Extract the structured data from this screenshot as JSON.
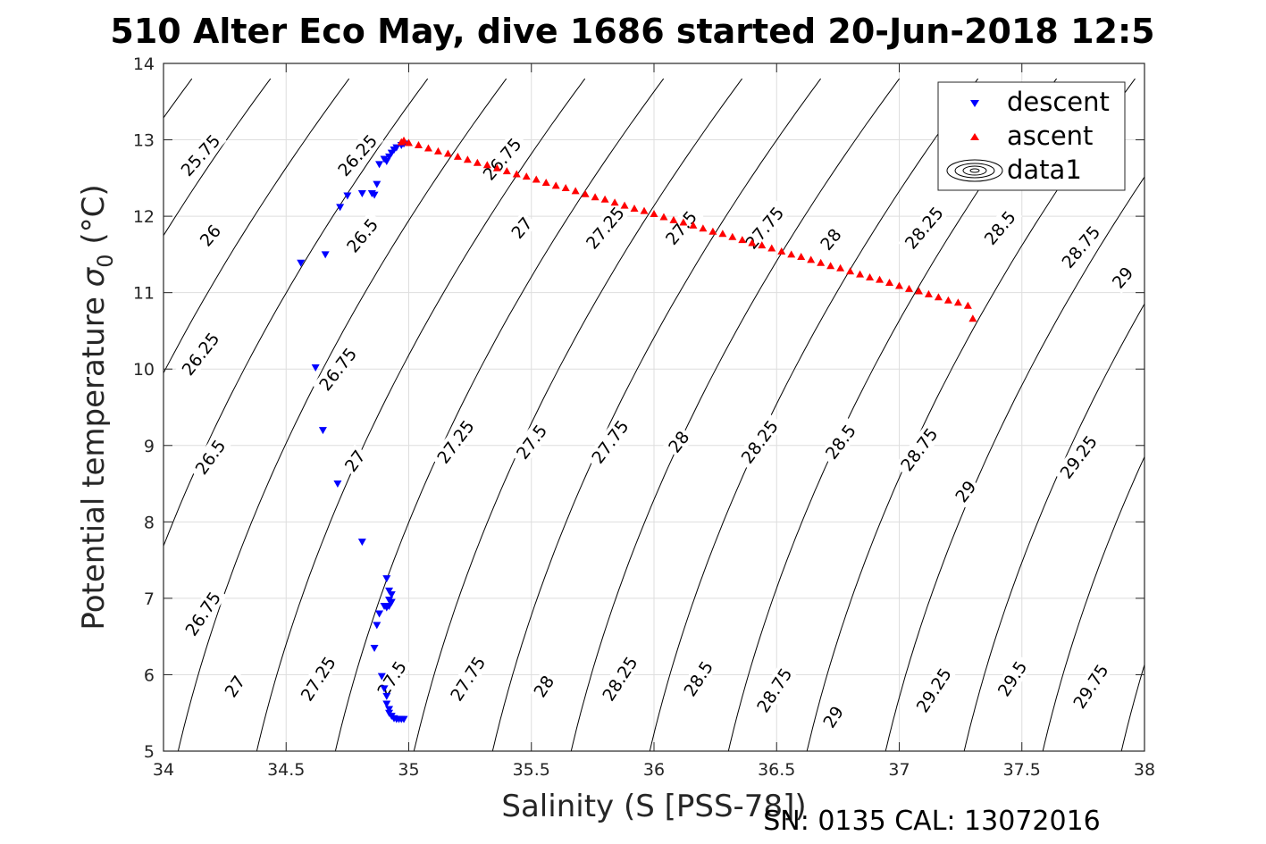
{
  "chart_data": {
    "type": "scatter",
    "title": "510 Alter Eco May, dive 1686 started 20-Jun-2018 12:5",
    "xlabel": "Salinity (S [PSS-78])",
    "ylabel_main": "Potential temperature ",
    "ylabel_symbol": "σ",
    "ylabel_sub": "0",
    "ylabel_unit": " (°C)",
    "footer": "SN: 0135  CAL: 13072016",
    "xlim": [
      34,
      38
    ],
    "ylim": [
      5,
      14
    ],
    "xticks": [
      34,
      34.5,
      35,
      35.5,
      36,
      36.5,
      37,
      37.5,
      38
    ],
    "xtick_labels": [
      "34",
      "34.5",
      "35",
      "35.5",
      "36",
      "36.5",
      "37",
      "37.5",
      "38"
    ],
    "yticks": [
      5,
      6,
      7,
      8,
      9,
      10,
      11,
      12,
      13,
      14
    ],
    "ytick_labels": [
      "5",
      "6",
      "7",
      "8",
      "9",
      "10",
      "11",
      "12",
      "13",
      "14"
    ],
    "grid": true,
    "legend_position": "top-right",
    "legend": [
      "descent",
      "ascent",
      "data1"
    ],
    "contours": {
      "levels": [
        25.5,
        25.75,
        26,
        26.25,
        26.5,
        26.75,
        27,
        27.25,
        27.5,
        27.75,
        28,
        28.25,
        28.5,
        28.75,
        29,
        29.25,
        29.5,
        29.75,
        30
      ],
      "color": "#000000",
      "labels": [
        {
          "text": "25.75",
          "level": 25.75,
          "s": 34.15,
          "t": 12.8,
          "angle": -48
        },
        {
          "text": "26.25",
          "level": 26.25,
          "s": 34.79,
          "t": 12.8,
          "angle": -48
        },
        {
          "text": "26",
          "level": 26,
          "s": 34.19,
          "t": 11.75,
          "angle": -50
        },
        {
          "text": "26.5",
          "level": 26.5,
          "s": 34.81,
          "t": 11.75,
          "angle": -50
        },
        {
          "text": "26.25",
          "level": 26.25,
          "s": 34.15,
          "t": 10.2,
          "angle": -52
        },
        {
          "text": "26.75",
          "level": 26.75,
          "s": 34.71,
          "t": 10.0,
          "angle": -52
        },
        {
          "text": "26.5",
          "level": 26.5,
          "s": 34.19,
          "t": 8.85,
          "angle": -54
        },
        {
          "text": "27",
          "level": 27,
          "s": 34.78,
          "t": 8.8,
          "angle": -54
        },
        {
          "text": "26.75",
          "level": 26.75,
          "s": 34.16,
          "t": 6.8,
          "angle": -56
        },
        {
          "text": "27",
          "level": 27,
          "s": 34.29,
          "t": 5.85,
          "angle": -56
        },
        {
          "text": "27.25",
          "level": 27.25,
          "s": 34.63,
          "t": 5.95,
          "angle": -57
        },
        {
          "text": "27.5",
          "level": 27.5,
          "s": 34.93,
          "t": 5.95,
          "angle": -57
        },
        {
          "text": "27.75",
          "level": 27.75,
          "s": 35.24,
          "t": 5.95,
          "angle": -57
        },
        {
          "text": "28",
          "level": 28,
          "s": 35.55,
          "t": 5.85,
          "angle": -57
        },
        {
          "text": "28.25",
          "level": 28.25,
          "s": 35.86,
          "t": 5.95,
          "angle": -57
        },
        {
          "text": "28.5",
          "level": 28.5,
          "s": 36.18,
          "t": 5.95,
          "angle": -57
        },
        {
          "text": "28.75",
          "level": 28.75,
          "s": 36.49,
          "t": 5.8,
          "angle": -57
        },
        {
          "text": "29",
          "level": 29,
          "s": 36.73,
          "t": 5.45,
          "angle": -57
        },
        {
          "text": "29.25",
          "level": 29.25,
          "s": 37.14,
          "t": 5.8,
          "angle": -57
        },
        {
          "text": "29.5",
          "level": 29.5,
          "s": 37.46,
          "t": 5.95,
          "angle": -57
        },
        {
          "text": "29.75",
          "level": 29.75,
          "s": 37.78,
          "t": 5.85,
          "angle": -57
        },
        {
          "text": "27.25",
          "level": 27.25,
          "s": 35.19,
          "t": 9.05,
          "angle": -53
        },
        {
          "text": "27.5",
          "level": 27.5,
          "s": 35.5,
          "t": 9.05,
          "angle": -53
        },
        {
          "text": "27.75",
          "level": 27.75,
          "s": 35.82,
          "t": 9.05,
          "angle": -53
        },
        {
          "text": "28",
          "level": 28,
          "s": 36.1,
          "t": 9.05,
          "angle": -53
        },
        {
          "text": "28.25",
          "level": 28.25,
          "s": 36.43,
          "t": 9.05,
          "angle": -53
        },
        {
          "text": "28.5",
          "level": 28.5,
          "s": 36.76,
          "t": 9.05,
          "angle": -53
        },
        {
          "text": "28.75",
          "level": 28.75,
          "s": 37.08,
          "t": 8.95,
          "angle": -53
        },
        {
          "text": "29",
          "level": 29,
          "s": 37.27,
          "t": 8.4,
          "angle": -53
        },
        {
          "text": "29.25",
          "level": 29.25,
          "s": 37.73,
          "t": 8.85,
          "angle": -53
        },
        {
          "text": "26.75",
          "level": 26.75,
          "s": 35.38,
          "t": 12.75,
          "angle": -50
        },
        {
          "text": "27",
          "level": 27,
          "s": 35.46,
          "t": 11.85,
          "angle": -50
        },
        {
          "text": "27.25",
          "level": 27.25,
          "s": 35.8,
          "t": 11.85,
          "angle": -50
        },
        {
          "text": "27.5",
          "level": 27.5,
          "s": 36.11,
          "t": 11.85,
          "angle": -50
        },
        {
          "text": "27.75",
          "level": 27.75,
          "s": 36.45,
          "t": 11.85,
          "angle": -50
        },
        {
          "text": "28",
          "level": 28,
          "s": 36.72,
          "t": 11.7,
          "angle": -50
        },
        {
          "text": "28.25",
          "level": 28.25,
          "s": 37.1,
          "t": 11.85,
          "angle": -50
        },
        {
          "text": "28.5",
          "level": 28.5,
          "s": 37.41,
          "t": 11.85,
          "angle": -50
        },
        {
          "text": "28.75",
          "level": 28.75,
          "s": 37.74,
          "t": 11.6,
          "angle": -50
        },
        {
          "text": "29",
          "level": 29,
          "s": 37.91,
          "t": 11.2,
          "angle": -50
        }
      ]
    },
    "series": [
      {
        "name": "descent",
        "marker": "triangle-down",
        "color": "#0000ff",
        "x": [
          34.98,
          34.97,
          34.95,
          34.94,
          34.93,
          34.92,
          34.91,
          34.9,
          34.88,
          34.87,
          34.85,
          34.86,
          34.81,
          34.75,
          34.72,
          34.56,
          34.66,
          34.62,
          34.65,
          34.71,
          34.81,
          34.91,
          34.92,
          34.92,
          34.93,
          34.93,
          34.92,
          34.91,
          34.9,
          34.88,
          34.87,
          34.86,
          34.89,
          34.9,
          34.91,
          34.91,
          34.92,
          34.92,
          34.93,
          34.94,
          34.95,
          34.96,
          34.97,
          34.98
        ],
        "y": [
          12.95,
          12.93,
          12.9,
          12.87,
          12.83,
          12.78,
          12.72,
          12.75,
          12.68,
          12.42,
          12.3,
          12.28,
          12.3,
          12.27,
          12.12,
          11.39,
          11.5,
          10.02,
          9.2,
          8.5,
          7.74,
          7.26,
          7.1,
          6.98,
          7.05,
          6.95,
          6.9,
          6.88,
          6.9,
          6.8,
          6.65,
          6.35,
          5.98,
          5.82,
          5.72,
          5.62,
          5.55,
          5.5,
          5.46,
          5.43,
          5.42,
          5.42,
          5.42,
          5.42
        ]
      },
      {
        "name": "ascent",
        "marker": "triangle-up",
        "color": "#ff0000",
        "x": [
          34.97,
          34.98,
          35.0,
          35.04,
          35.08,
          35.12,
          35.16,
          35.2,
          35.24,
          35.28,
          35.32,
          35.36,
          35.4,
          35.44,
          35.48,
          35.52,
          35.56,
          35.6,
          35.64,
          35.68,
          35.72,
          35.76,
          35.8,
          35.84,
          35.88,
          35.92,
          35.96,
          36.0,
          36.04,
          36.08,
          36.12,
          36.16,
          36.2,
          36.24,
          36.28,
          36.32,
          36.36,
          36.4,
          36.44,
          36.48,
          36.52,
          36.56,
          36.6,
          36.64,
          36.68,
          36.72,
          36.76,
          36.8,
          36.84,
          36.88,
          36.92,
          36.96,
          37.0,
          37.04,
          37.08,
          37.12,
          37.16,
          37.2,
          37.24,
          37.28,
          37.3
        ],
        "y": [
          12.97,
          12.99,
          12.96,
          12.93,
          12.89,
          12.85,
          12.82,
          12.78,
          12.74,
          12.7,
          12.67,
          12.63,
          12.59,
          12.55,
          12.52,
          12.48,
          12.44,
          12.4,
          12.37,
          12.33,
          12.29,
          12.25,
          12.22,
          12.18,
          12.14,
          12.1,
          12.07,
          12.03,
          11.99,
          11.95,
          11.92,
          11.88,
          11.84,
          11.8,
          11.77,
          11.73,
          11.69,
          11.65,
          11.62,
          11.58,
          11.54,
          11.5,
          11.47,
          11.43,
          11.39,
          11.35,
          11.32,
          11.28,
          11.24,
          11.2,
          11.17,
          11.13,
          11.09,
          11.05,
          11.02,
          10.98,
          10.94,
          10.9,
          10.87,
          10.83,
          10.66
        ]
      }
    ]
  }
}
